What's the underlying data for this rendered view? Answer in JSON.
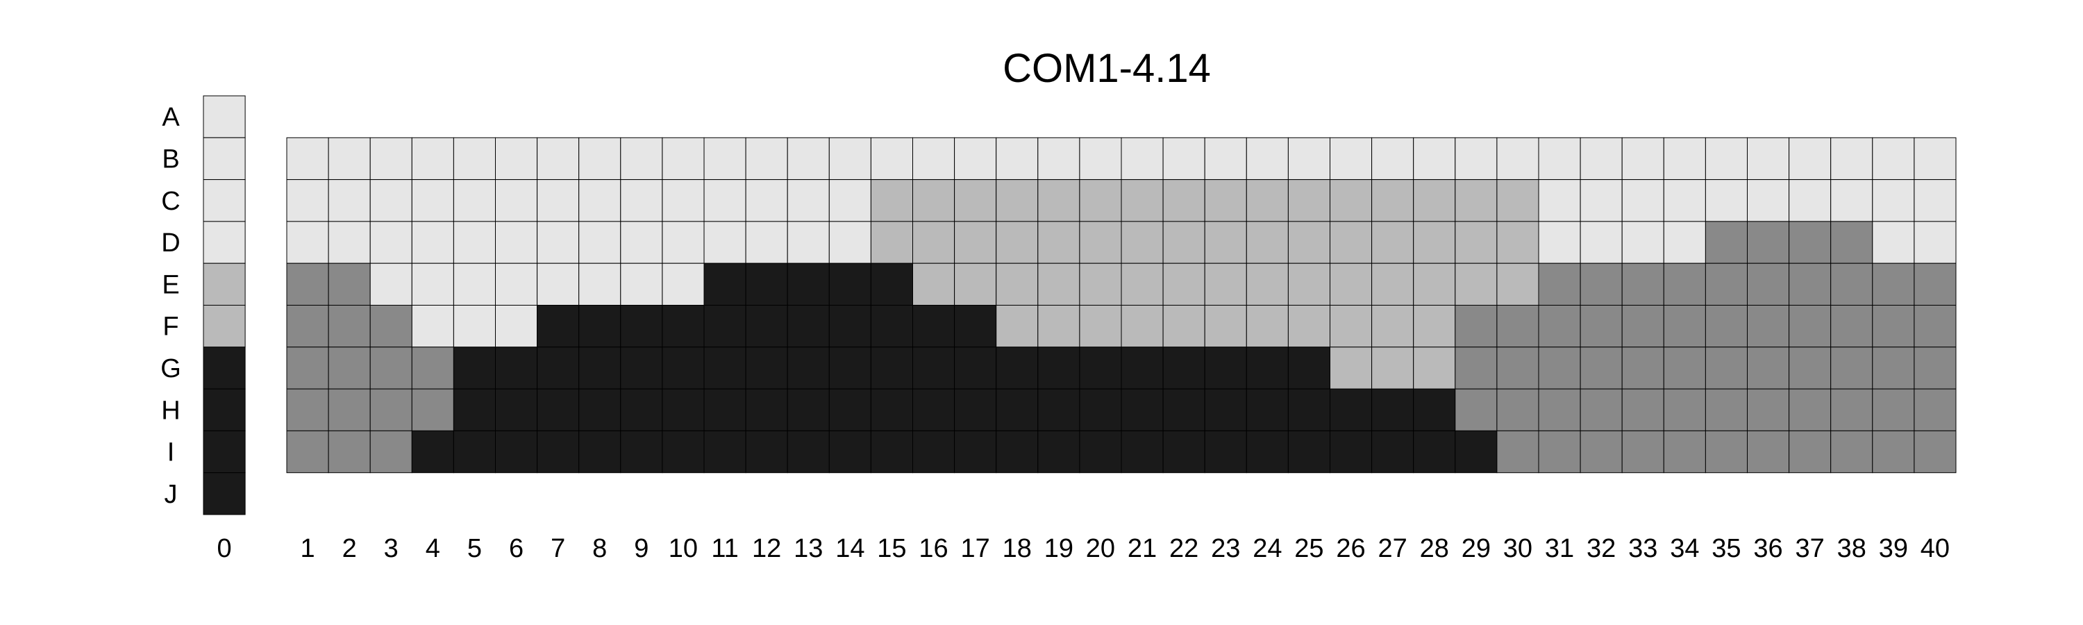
{
  "chart_data": {
    "type": "heatmap",
    "title": "COM1-4.14",
    "rows": [
      "A",
      "B",
      "C",
      "D",
      "E",
      "F",
      "G",
      "H",
      "I",
      "J"
    ],
    "reference_column": {
      "label": "0",
      "levels": [
        0,
        0,
        0,
        0,
        1,
        1,
        3,
        3,
        3,
        3
      ]
    },
    "columns": [
      "1",
      "2",
      "3",
      "4",
      "5",
      "6",
      "7",
      "8",
      "9",
      "10",
      "11",
      "12",
      "13",
      "14",
      "15",
      "16",
      "17",
      "18",
      "19",
      "20",
      "21",
      "22",
      "23",
      "24",
      "25",
      "26",
      "27",
      "28",
      "29",
      "30",
      "31",
      "32",
      "33",
      "34",
      "35",
      "36",
      "37",
      "38",
      "39",
      "40"
    ],
    "grid_rows": [
      "B",
      "C",
      "D",
      "E",
      "F",
      "G",
      "H",
      "I"
    ],
    "grid": [
      [
        0,
        0,
        0,
        0,
        0,
        0,
        0,
        0,
        0,
        0,
        0,
        0,
        0,
        0,
        0,
        0,
        0,
        0,
        0,
        0,
        0,
        0,
        0,
        0,
        0,
        0,
        0,
        0,
        0,
        0,
        0,
        0,
        0,
        0,
        0,
        0,
        0,
        0,
        0,
        0
      ],
      [
        0,
        0,
        0,
        0,
        0,
        0,
        0,
        0,
        0,
        0,
        0,
        0,
        0,
        0,
        1,
        1,
        1,
        1,
        1,
        1,
        1,
        1,
        1,
        1,
        1,
        1,
        1,
        1,
        1,
        1,
        0,
        0,
        0,
        0,
        0,
        0,
        0,
        0,
        0,
        0
      ],
      [
        0,
        0,
        0,
        0,
        0,
        0,
        0,
        0,
        0,
        0,
        0,
        0,
        0,
        0,
        1,
        1,
        1,
        1,
        1,
        1,
        1,
        1,
        1,
        1,
        1,
        1,
        1,
        1,
        1,
        1,
        0,
        0,
        0,
        0,
        2,
        2,
        2,
        2,
        0,
        0
      ],
      [
        2,
        2,
        0,
        0,
        0,
        0,
        0,
        0,
        0,
        0,
        3,
        3,
        3,
        3,
        3,
        1,
        1,
        1,
        1,
        1,
        1,
        1,
        1,
        1,
        1,
        1,
        1,
        1,
        1,
        1,
        2,
        2,
        2,
        2,
        2,
        2,
        2,
        2,
        2,
        2
      ],
      [
        2,
        2,
        2,
        0,
        0,
        0,
        3,
        3,
        3,
        3,
        3,
        3,
        3,
        3,
        3,
        3,
        3,
        1,
        1,
        1,
        1,
        1,
        1,
        1,
        1,
        1,
        1,
        1,
        2,
        2,
        2,
        2,
        2,
        2,
        2,
        2,
        2,
        2,
        2,
        2
      ],
      [
        2,
        2,
        2,
        2,
        3,
        3,
        3,
        3,
        3,
        3,
        3,
        3,
        3,
        3,
        3,
        3,
        3,
        3,
        3,
        3,
        3,
        3,
        3,
        3,
        3,
        1,
        1,
        1,
        2,
        2,
        2,
        2,
        2,
        2,
        2,
        2,
        2,
        2,
        2,
        2
      ],
      [
        2,
        2,
        2,
        2,
        3,
        3,
        3,
        3,
        3,
        3,
        3,
        3,
        3,
        3,
        3,
        3,
        3,
        3,
        3,
        3,
        3,
        3,
        3,
        3,
        3,
        3,
        3,
        3,
        2,
        2,
        2,
        2,
        2,
        2,
        2,
        2,
        2,
        2,
        2,
        2
      ],
      [
        2,
        2,
        2,
        3,
        3,
        3,
        3,
        3,
        3,
        3,
        3,
        3,
        3,
        3,
        3,
        3,
        3,
        3,
        3,
        3,
        3,
        3,
        3,
        3,
        3,
        3,
        3,
        3,
        3,
        2,
        2,
        2,
        2,
        2,
        2,
        2,
        2,
        2,
        2,
        2
      ]
    ],
    "level_colors": [
      "#e6e6e6",
      "#bababa",
      "#898989",
      "#1a1a1a"
    ],
    "legend": "none",
    "grid_lines": true
  }
}
